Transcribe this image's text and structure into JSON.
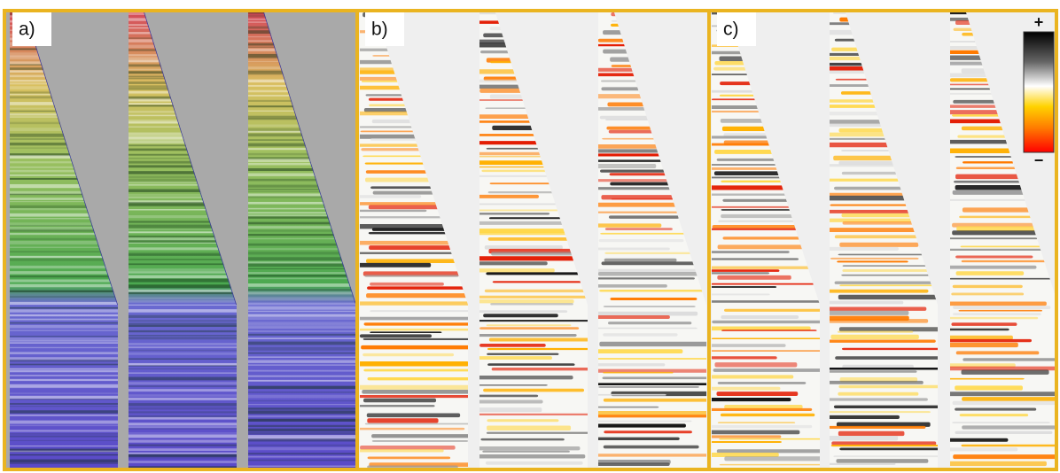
{
  "panels": [
    {
      "label": "a)"
    },
    {
      "label": "b)"
    },
    {
      "label": "c)"
    }
  ],
  "colorbar": {
    "top": "+",
    "bottom": "−"
  }
}
